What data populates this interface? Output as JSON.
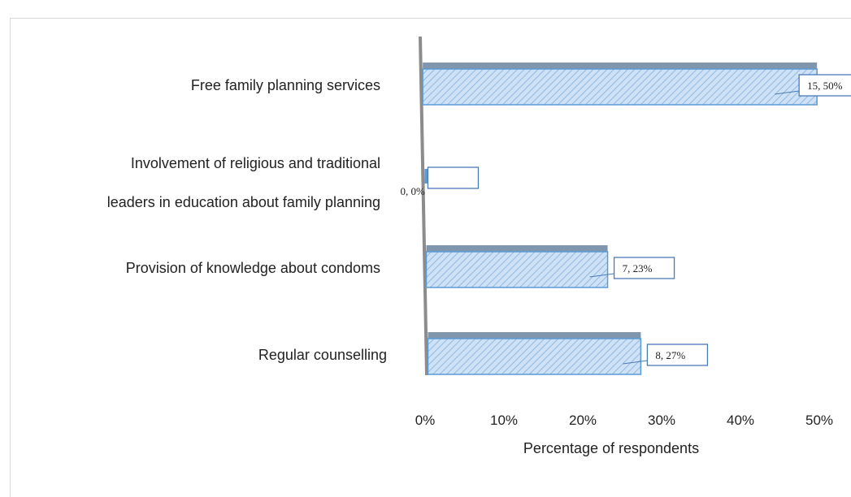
{
  "chart_data": {
    "type": "bar",
    "orientation": "horizontal",
    "title": "",
    "categories": [
      "Free family planning services",
      [
        "Involvement of religious and traditional",
        "leaders in education about family planning"
      ],
      "Provision of knowledge about condoms",
      "Regular counselling"
    ],
    "series": [
      {
        "values": [
          50,
          0,
          23,
          27
        ],
        "counts": [
          15,
          0,
          7,
          8
        ],
        "data_labels": [
          "15, 50%",
          "0, 0%",
          "7, 23%",
          "8, 27%"
        ]
      }
    ],
    "xlabel": "Percentage of respondents",
    "ylabel": "",
    "xlim": [
      0,
      50
    ],
    "xticks": [
      "0%",
      "10%",
      "20%",
      "30%",
      "40%",
      "50%"
    ],
    "grid": false,
    "legend": "none",
    "colors": {
      "bar_fill": "#cfe2f5",
      "bar_hatch": "#8fb8e2",
      "bar_border": "#5b9bd5",
      "bar_shadow": "#7f96ad",
      "axis": "#8c8c8c",
      "label_border": "#4a7ab8"
    }
  }
}
